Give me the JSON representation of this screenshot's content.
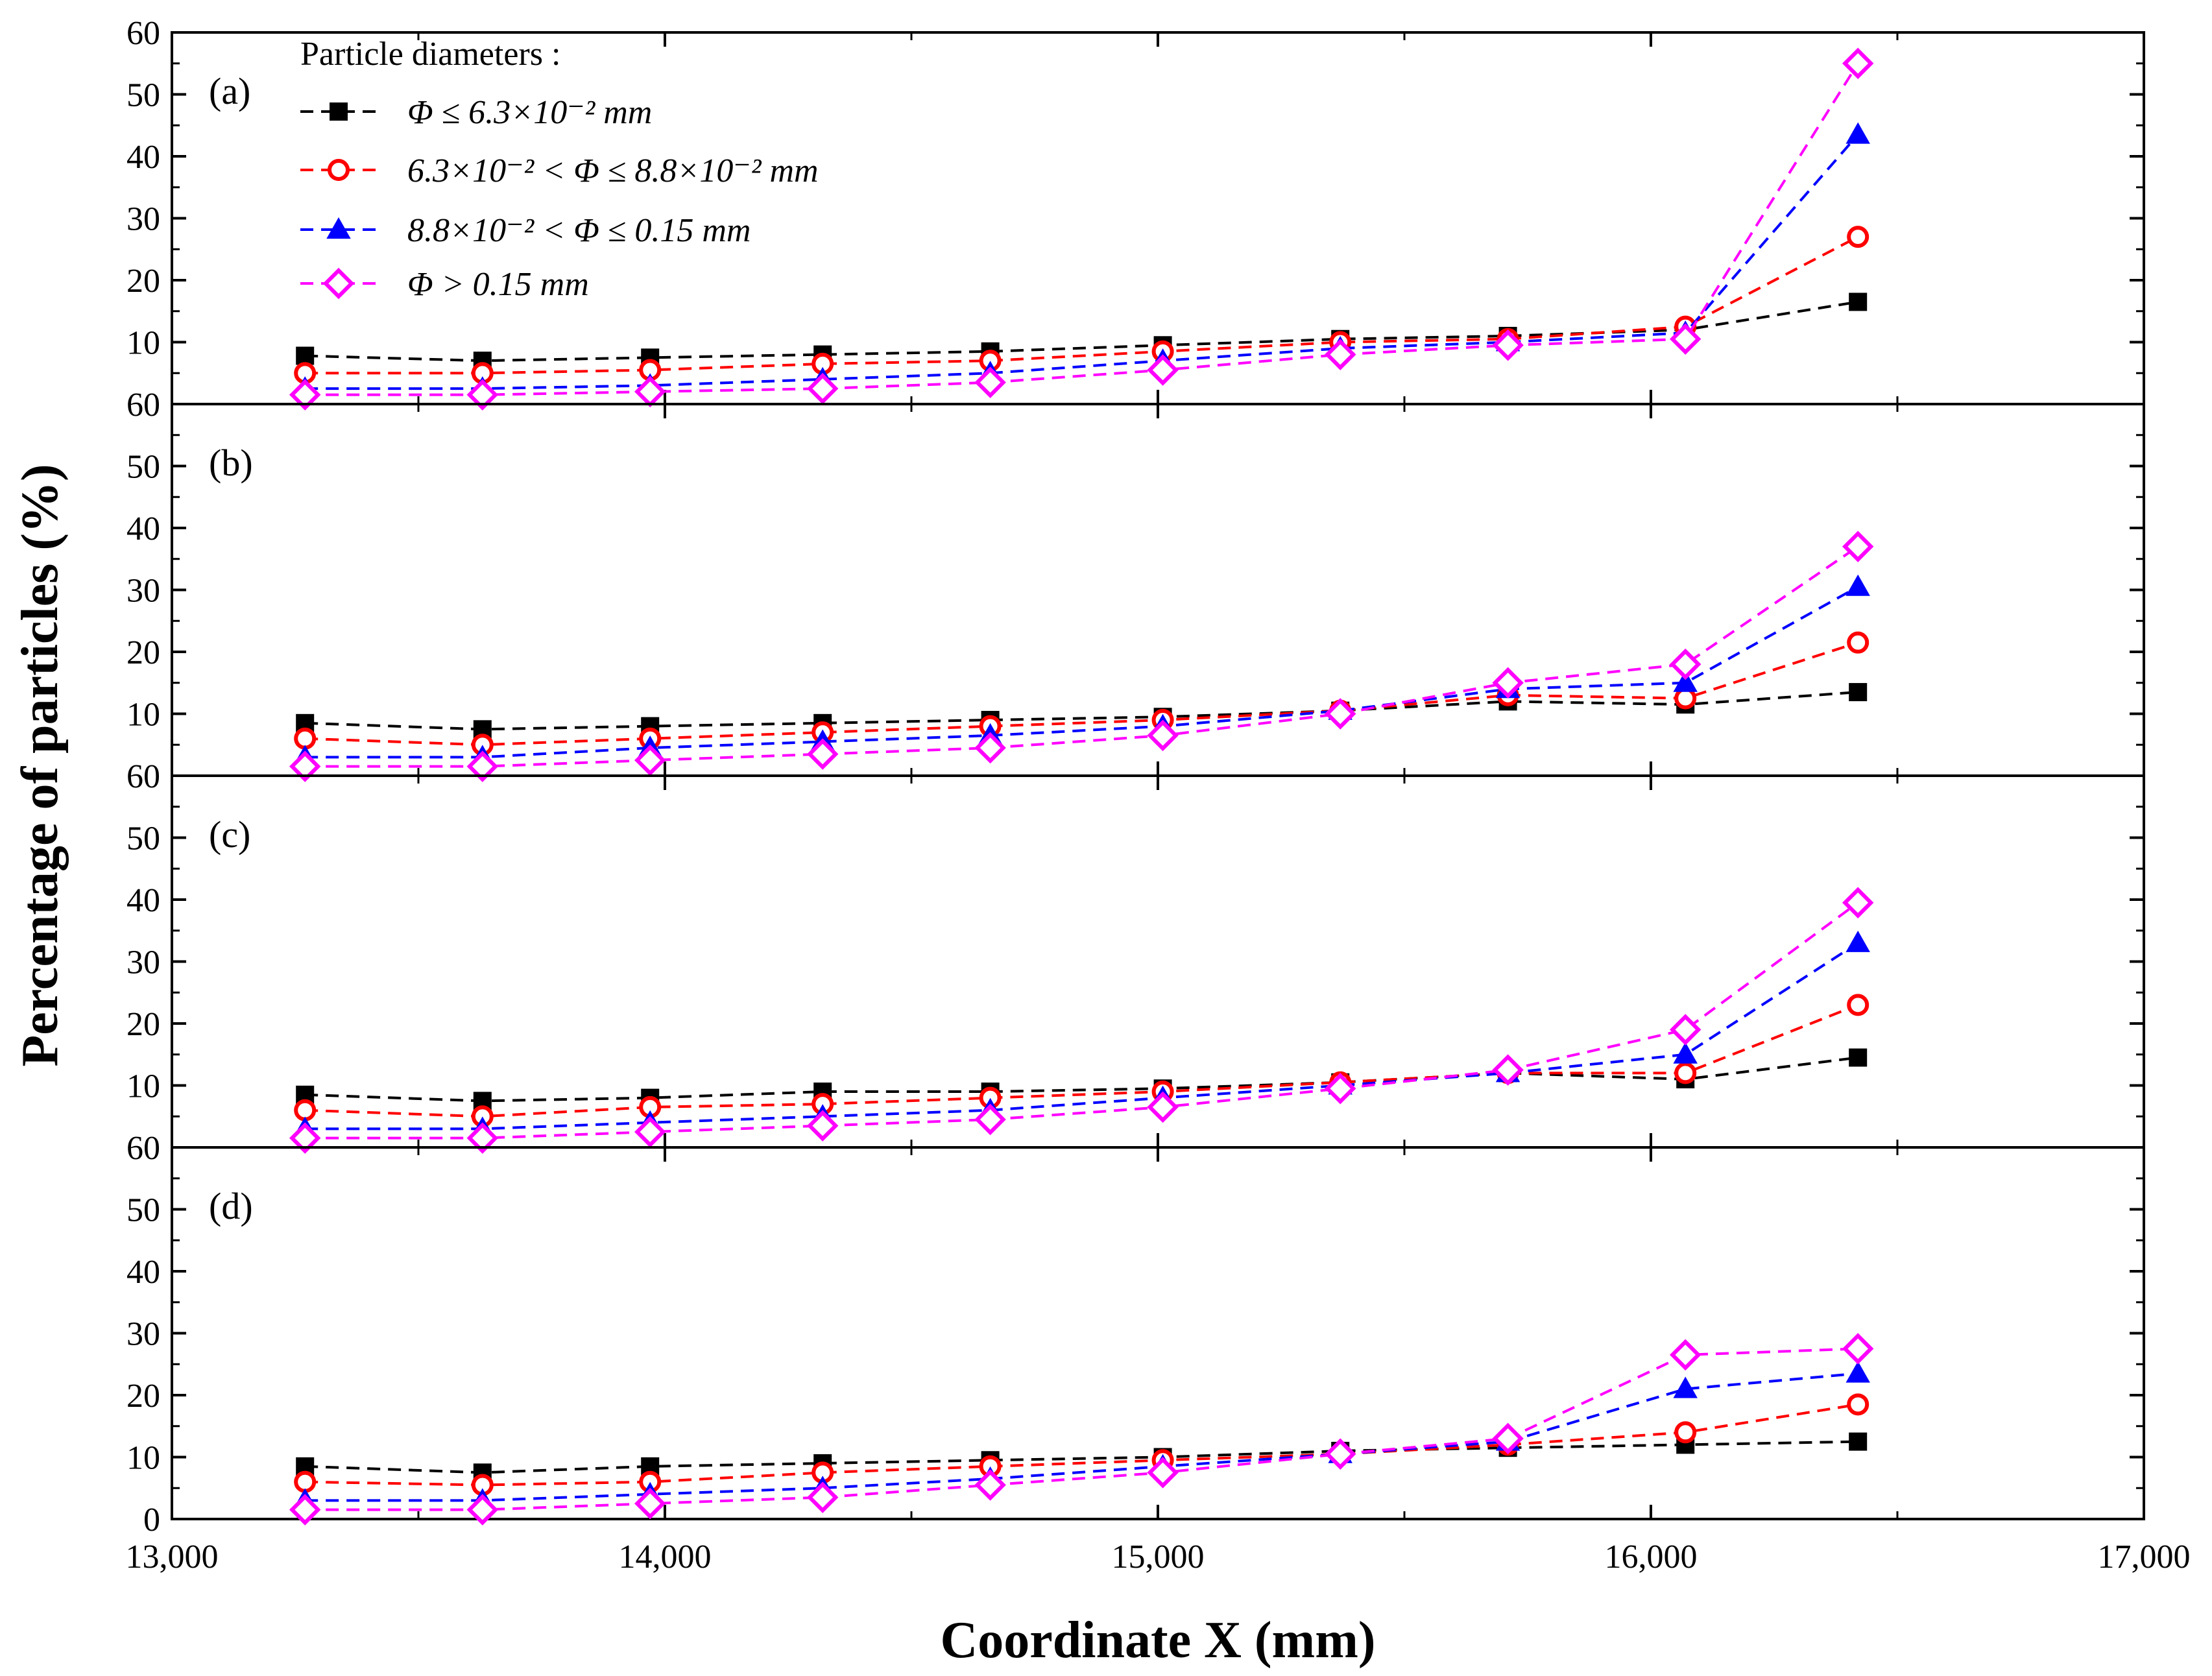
{
  "chart_data": {
    "type": "line",
    "xlabel": "Coordinate X (mm)",
    "ylabel": "Percentage of particles (%)",
    "xlim": [
      13000,
      17000
    ],
    "ylim": [
      0,
      60
    ],
    "x_ticks": [
      "13,000",
      "14,000",
      "15,000",
      "16,000",
      "17,000"
    ],
    "y_ticks": [
      "0",
      "10",
      "20",
      "30",
      "40",
      "50",
      "60"
    ],
    "x": [
      13270,
      13630,
      13970,
      14320,
      14660,
      15010,
      15370,
      15710,
      16070,
      16420
    ],
    "legend": {
      "title": "Particle diameters :",
      "placement": "top-left"
    },
    "series_styles": [
      {
        "name": "Φ ≤ 6.3×10⁻² mm",
        "color": "#000000",
        "marker": "square-filled"
      },
      {
        "name": "6.3×10⁻² < Φ ≤ 8.8×10⁻² mm",
        "color": "#ff0000",
        "marker": "circle-open"
      },
      {
        "name": "8.8×10⁻² < Φ ≤ 0.15 mm",
        "color": "#0000ff",
        "marker": "triangle-filled"
      },
      {
        "name": "Φ > 0.15 mm",
        "color": "#ff00ff",
        "marker": "diamond-open"
      }
    ],
    "panels": [
      {
        "label": "(a)",
        "series": [
          {
            "name": "Φ ≤ 6.3×10⁻² mm",
            "values": [
              7.8,
              7.0,
              7.5,
              8.0,
              8.5,
              9.5,
              10.5,
              11.0,
              12.0,
              16.5
            ]
          },
          {
            "name": "6.3×10⁻² < Φ ≤ 8.8×10⁻² mm",
            "values": [
              5.0,
              5.0,
              5.5,
              6.5,
              7.0,
              8.5,
              10.0,
              10.5,
              12.5,
              27.0
            ]
          },
          {
            "name": "8.8×10⁻² < Φ ≤ 0.15 mm",
            "values": [
              2.5,
              2.5,
              3.0,
              4.0,
              5.0,
              7.0,
              9.0,
              10.0,
              11.5,
              43.5
            ]
          },
          {
            "name": "Φ > 0.15 mm",
            "values": [
              1.5,
              1.5,
              2.0,
              2.5,
              3.5,
              5.5,
              8.0,
              9.5,
              10.5,
              55.0
            ]
          }
        ]
      },
      {
        "label": "(b)",
        "series": [
          {
            "name": "Φ ≤ 6.3×10⁻² mm",
            "values": [
              8.5,
              7.5,
              8.0,
              8.5,
              9.0,
              9.5,
              10.5,
              12.0,
              11.5,
              13.5
            ]
          },
          {
            "name": "6.3×10⁻² < Φ ≤ 8.8×10⁻² mm",
            "values": [
              6.0,
              5.0,
              6.0,
              7.0,
              8.0,
              9.0,
              10.5,
              13.0,
              12.5,
              21.5
            ]
          },
          {
            "name": "8.8×10⁻² < Φ ≤ 0.15 mm",
            "values": [
              3.0,
              3.0,
              4.5,
              5.5,
              6.5,
              8.0,
              10.5,
              14.0,
              15.0,
              30.5
            ]
          },
          {
            "name": "Φ > 0.15 mm",
            "values": [
              1.5,
              1.5,
              2.5,
              3.5,
              4.5,
              6.5,
              10.0,
              15.0,
              18.0,
              37.0
            ]
          }
        ]
      },
      {
        "label": "(c)",
        "series": [
          {
            "name": "Φ ≤ 6.3×10⁻² mm",
            "values": [
              8.5,
              7.5,
              8.0,
              9.0,
              9.0,
              9.5,
              10.5,
              12.0,
              11.0,
              14.5
            ]
          },
          {
            "name": "6.3×10⁻² < Φ ≤ 8.8×10⁻² mm",
            "values": [
              6.0,
              5.0,
              6.5,
              7.0,
              8.0,
              9.0,
              10.5,
              12.0,
              12.0,
              23.0
            ]
          },
          {
            "name": "8.8×10⁻² < Φ ≤ 0.15 mm",
            "values": [
              3.0,
              3.0,
              4.0,
              5.0,
              6.0,
              8.0,
              10.0,
              12.0,
              15.0,
              33.0
            ]
          },
          {
            "name": "Φ > 0.15 mm",
            "values": [
              1.5,
              1.5,
              2.5,
              3.5,
              4.5,
              6.5,
              9.5,
              12.5,
              19.0,
              39.5
            ]
          }
        ]
      },
      {
        "label": "(d)",
        "series": [
          {
            "name": "Φ ≤ 6.3×10⁻² mm",
            "values": [
              8.5,
              7.5,
              8.5,
              9.0,
              9.5,
              10.0,
              11.0,
              11.5,
              12.0,
              12.5
            ]
          },
          {
            "name": "6.3×10⁻² < Φ ≤ 8.8×10⁻² mm",
            "values": [
              6.0,
              5.5,
              6.0,
              7.5,
              8.5,
              9.5,
              10.5,
              12.0,
              14.0,
              18.5
            ]
          },
          {
            "name": "8.8×10⁻² < Φ ≤ 0.15 mm",
            "values": [
              3.0,
              3.0,
              4.0,
              5.0,
              6.5,
              8.5,
              10.5,
              12.5,
              21.0,
              23.5
            ]
          },
          {
            "name": "Φ > 0.15 mm",
            "values": [
              1.5,
              1.5,
              2.5,
              3.5,
              5.5,
              7.5,
              10.5,
              13.0,
              26.5,
              27.5
            ]
          }
        ]
      }
    ]
  }
}
